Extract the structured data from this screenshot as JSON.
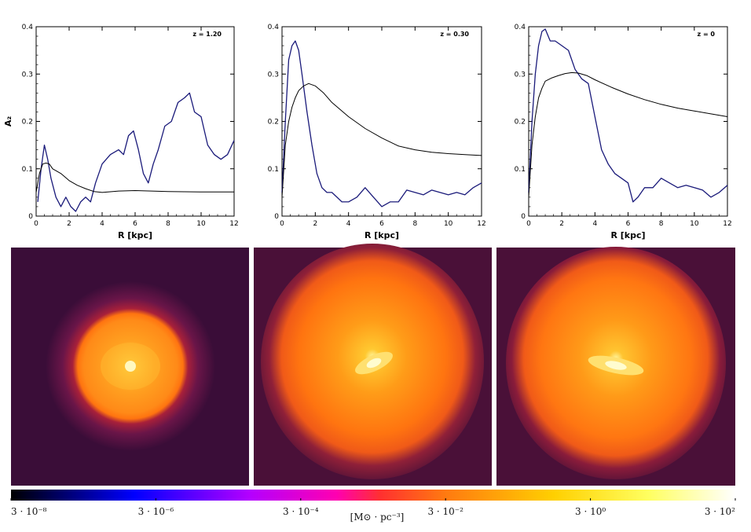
{
  "chart_data": [
    {
      "type": "line",
      "annotation": "z = 1.20",
      "xlabel": "R [kpc]",
      "ylabel": "A₂",
      "xlim": [
        0,
        12
      ],
      "ylim": [
        0,
        0.4
      ],
      "xticks": [
        "0",
        "2",
        "4",
        "6",
        "8",
        "10",
        "12"
      ],
      "yticks": [
        "0",
        "0.1",
        "0.2",
        "0.3",
        "0.4"
      ],
      "series": [
        {
          "color": "#1a1a7a",
          "x": [
            0.1,
            0.3,
            0.5,
            0.7,
            0.9,
            1.2,
            1.5,
            1.8,
            2.1,
            2.4,
            2.7,
            3.0,
            3.3,
            3.6,
            4.0,
            4.5,
            5.0,
            5.3,
            5.6,
            5.9,
            6.2,
            6.5,
            6.8,
            7.1,
            7.4,
            7.8,
            8.2,
            8.6,
            9.0,
            9.3,
            9.6,
            10.0,
            10.4,
            10.8,
            11.2,
            11.6,
            12.0
          ],
          "y": [
            0.03,
            0.1,
            0.15,
            0.12,
            0.08,
            0.04,
            0.02,
            0.04,
            0.02,
            0.01,
            0.03,
            0.04,
            0.03,
            0.07,
            0.11,
            0.13,
            0.14,
            0.13,
            0.17,
            0.18,
            0.14,
            0.09,
            0.07,
            0.11,
            0.14,
            0.19,
            0.2,
            0.24,
            0.25,
            0.26,
            0.22,
            0.21,
            0.15,
            0.13,
            0.12,
            0.13,
            0.16
          ]
        },
        {
          "color": "#000000",
          "x": [
            0,
            0.2,
            0.4,
            0.6,
            0.8,
            1.0,
            1.5,
            2.0,
            2.5,
            3.0,
            3.5,
            4.0,
            5.0,
            6.0,
            8.0,
            10.0,
            12.0
          ],
          "y": [
            0.05,
            0.09,
            0.11,
            0.112,
            0.11,
            0.1,
            0.09,
            0.075,
            0.065,
            0.058,
            0.052,
            0.05,
            0.053,
            0.054,
            0.052,
            0.051,
            0.051
          ]
        }
      ]
    },
    {
      "type": "line",
      "annotation": "z = 0.30",
      "xlabel": "R [kpc]",
      "ylabel": "",
      "xlim": [
        0,
        12
      ],
      "ylim": [
        0,
        0.4
      ],
      "xticks": [
        "0",
        "2",
        "4",
        "6",
        "8",
        "10",
        "12"
      ],
      "yticks": [
        "0",
        "0.1",
        "0.2",
        "0.3",
        "0.4"
      ],
      "series": [
        {
          "color": "#1a1a7a",
          "x": [
            0,
            0.2,
            0.4,
            0.6,
            0.8,
            1.0,
            1.2,
            1.5,
            1.8,
            2.1,
            2.4,
            2.7,
            3.0,
            3.3,
            3.6,
            4.0,
            4.5,
            5.0,
            5.5,
            6.0,
            6.5,
            7.0,
            7.5,
            8.0,
            8.5,
            9.0,
            9.5,
            10.0,
            10.5,
            11.0,
            11.5,
            12.0
          ],
          "y": [
            0.05,
            0.2,
            0.33,
            0.36,
            0.37,
            0.35,
            0.3,
            0.22,
            0.15,
            0.09,
            0.06,
            0.05,
            0.05,
            0.04,
            0.03,
            0.03,
            0.04,
            0.06,
            0.04,
            0.02,
            0.03,
            0.03,
            0.055,
            0.05,
            0.045,
            0.055,
            0.05,
            0.045,
            0.05,
            0.045,
            0.06,
            0.07
          ]
        },
        {
          "color": "#000000",
          "x": [
            0,
            0.2,
            0.4,
            0.6,
            0.8,
            1.0,
            1.3,
            1.6,
            2.0,
            2.5,
            3.0,
            4.0,
            5.0,
            6.0,
            7.0,
            8.0,
            9.0,
            10.0,
            11.0,
            12.0
          ],
          "y": [
            0.04,
            0.15,
            0.2,
            0.23,
            0.25,
            0.265,
            0.275,
            0.28,
            0.275,
            0.26,
            0.24,
            0.21,
            0.185,
            0.165,
            0.148,
            0.14,
            0.135,
            0.132,
            0.13,
            0.128
          ]
        }
      ]
    },
    {
      "type": "line",
      "annotation": "z = 0",
      "xlabel": "R [kpc]",
      "ylabel": "",
      "xlim": [
        0,
        12
      ],
      "ylim": [
        0,
        0.4
      ],
      "xticks": [
        "0",
        "2",
        "4",
        "6",
        "8",
        "10",
        "12"
      ],
      "yticks": [
        "0",
        "0.1",
        "0.2",
        "0.3",
        "0.4"
      ],
      "series": [
        {
          "color": "#1a1a7a",
          "x": [
            0,
            0.2,
            0.4,
            0.6,
            0.8,
            1.0,
            1.3,
            1.6,
            2.0,
            2.4,
            2.8,
            3.2,
            3.6,
            4.0,
            4.4,
            4.8,
            5.2,
            5.6,
            6.0,
            6.3,
            6.6,
            7.0,
            7.5,
            8.0,
            8.5,
            9.0,
            9.5,
            10.0,
            10.5,
            11.0,
            11.5,
            12.0
          ],
          "y": [
            0.05,
            0.2,
            0.3,
            0.36,
            0.39,
            0.395,
            0.37,
            0.37,
            0.36,
            0.35,
            0.31,
            0.29,
            0.28,
            0.21,
            0.14,
            0.11,
            0.09,
            0.08,
            0.07,
            0.03,
            0.04,
            0.06,
            0.06,
            0.08,
            0.07,
            0.06,
            0.065,
            0.06,
            0.055,
            0.04,
            0.05,
            0.065
          ]
        },
        {
          "color": "#000000",
          "x": [
            0,
            0.2,
            0.4,
            0.6,
            0.8,
            1.0,
            1.4,
            1.8,
            2.2,
            2.6,
            3.0,
            3.5,
            4.0,
            5.0,
            6.0,
            7.0,
            8.0,
            9.0,
            10.0,
            11.0,
            12.0
          ],
          "y": [
            0.04,
            0.15,
            0.21,
            0.25,
            0.27,
            0.285,
            0.292,
            0.297,
            0.301,
            0.303,
            0.302,
            0.297,
            0.288,
            0.272,
            0.258,
            0.246,
            0.236,
            0.228,
            0.222,
            0.216,
            0.21
          ]
        }
      ]
    }
  ],
  "colorbar": {
    "unit_label": "[M⊙ · pc⁻³]",
    "tick_labels": [
      "3 · 10⁻⁸",
      "3 · 10⁻⁶",
      "3 · 10⁻⁴",
      "3 · 10⁻²",
      "3 · 10⁰",
      "3 · 10²"
    ]
  }
}
